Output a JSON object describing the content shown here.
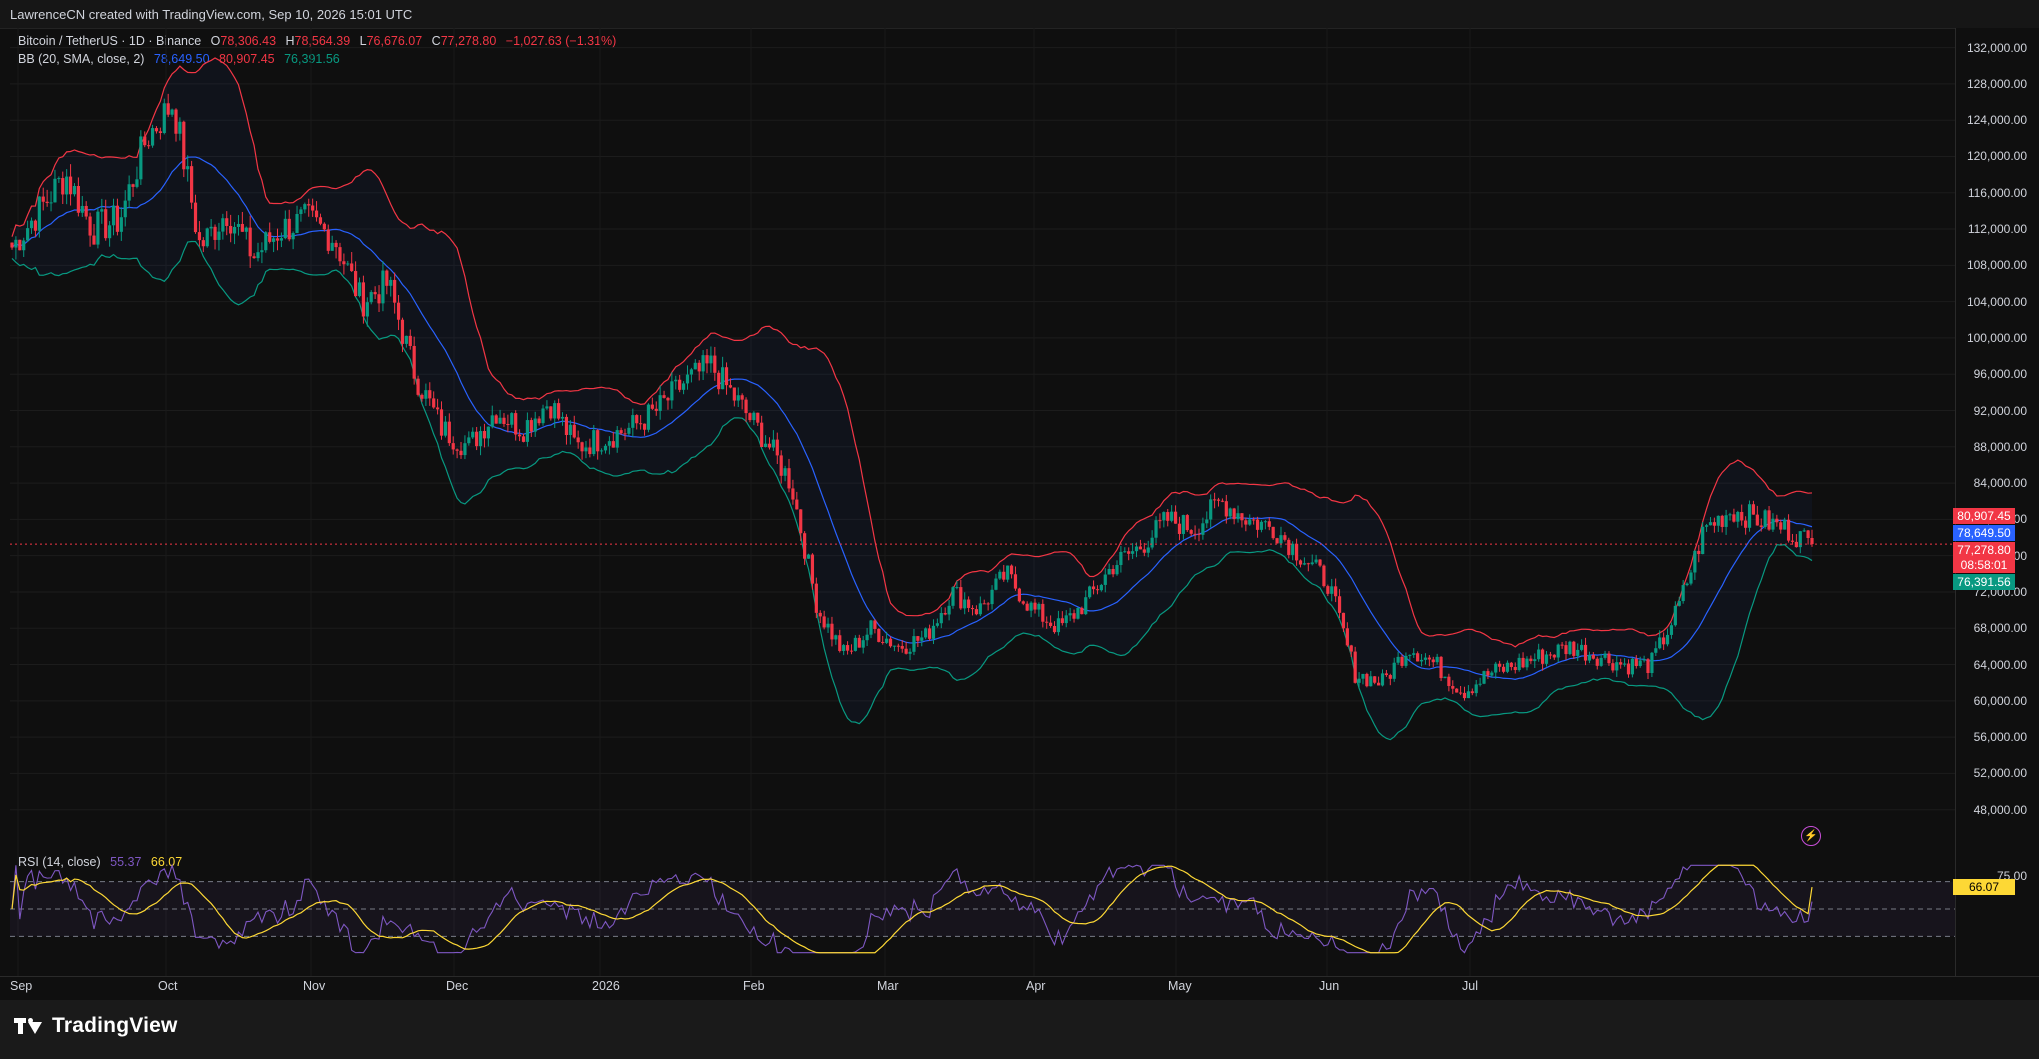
{
  "header": {
    "credit": "LawrenceCN created with TradingView.com, Sep 10, 2026 15:01 UTC"
  },
  "legend": {
    "symbol": "Bitcoin / TetherUS · 1D · Binance",
    "o_label": "O",
    "o_value": "78,306.43",
    "h_label": "H",
    "h_value": "78,564.39",
    "l_label": "L",
    "l_value": "76,676.07",
    "c_label": "C",
    "c_value": "77,278.80",
    "change": "−1,027.63 (−1.31%)",
    "bb_label": "BB (20, SMA, close, 2)",
    "bb_basis": "78,649.50",
    "bb_upper": "80,907.45",
    "bb_lower": "76,391.56",
    "rsi_label": "RSI (14, close)",
    "rsi_value": "55.37",
    "rsi_ma_value": "66.07"
  },
  "price_axis": {
    "ticks": [
      "132,000.00",
      "128,000.00",
      "124,000.00",
      "120,000.00",
      "116,000.00",
      "112,000.00",
      "108,000.00",
      "104,000.00",
      "100,000.00",
      "96,000.00",
      "92,000.00",
      "88,000.00",
      "84,000.00",
      "80,000.00",
      "76,000.00",
      "72,000.00",
      "68,000.00",
      "64,000.00",
      "60,000.00",
      "56,000.00",
      "52,000.00",
      "48,000.00"
    ],
    "tags": {
      "upper": "80,907.45",
      "basis": "78,649.50",
      "close": "77,278.80",
      "countdown": "08:58:01",
      "lower": "76,391.56"
    }
  },
  "rsi_axis": {
    "level_75": "75.00",
    "tag": "66.07"
  },
  "time_axis": {
    "labels": [
      "Sep",
      "Oct",
      "Nov",
      "Dec",
      "2026",
      "Feb",
      "Mar",
      "Apr",
      "May",
      "Jun",
      "Jul"
    ]
  },
  "brand": {
    "name": "TradingView"
  },
  "colors": {
    "up": "#089981",
    "down": "#f23645",
    "bb_upper": "#f23645",
    "bb_basis": "#2962ff",
    "bb_lower": "#089981",
    "rsi_line": "#7e57c2",
    "rsi_ma": "#fdd835",
    "background": "#0f0f0f"
  },
  "chart_data": {
    "type": "candlestick",
    "symbol": "Bitcoin / TetherUS",
    "interval": "1D",
    "ylim": [
      44000,
      133500
    ],
    "x": [
      "Sep",
      "Oct",
      "Nov",
      "Dec",
      "2026",
      "Feb",
      "Mar",
      "Apr",
      "May",
      "Jun",
      "Jul"
    ],
    "anchors": [
      [
        "Sep",
        110000
      ],
      [
        "Sep",
        114000
      ],
      [
        "Sep",
        118000
      ],
      [
        "Sep",
        112000
      ],
      [
        "Oct",
        113000
      ],
      [
        "Oct",
        122000
      ],
      [
        "Oct",
        126000
      ],
      [
        "Oct",
        110000
      ],
      [
        "Oct",
        114000
      ],
      [
        "Oct",
        109000
      ],
      [
        "Oct",
        112000
      ],
      [
        "Oct",
        113000
      ],
      [
        "Nov",
        111000
      ],
      [
        "Nov",
        104000
      ],
      [
        "Nov",
        106000
      ],
      [
        "Nov",
        96000
      ],
      [
        "Nov",
        90000
      ],
      [
        "Nov",
        88000
      ],
      [
        "Nov",
        92000
      ],
      [
        "Dec",
        90000
      ],
      [
        "Dec",
        93000
      ],
      [
        "Dec",
        88000
      ],
      [
        "Dec",
        89000
      ],
      [
        "Dec",
        90000
      ],
      [
        "2026",
        92000
      ],
      [
        "2026",
        95000
      ],
      [
        "2026",
        97000
      ],
      [
        "2026",
        93000
      ],
      [
        "2026",
        89000
      ],
      [
        "Feb",
        84000
      ],
      [
        "Feb",
        70000
      ],
      [
        "Feb",
        65000
      ],
      [
        "Feb",
        68000
      ],
      [
        "Feb",
        66000
      ],
      [
        "Mar",
        67000
      ],
      [
        "Mar",
        72000
      ],
      [
        "Mar",
        70000
      ],
      [
        "Mar",
        74000
      ],
      [
        "Mar",
        70000
      ],
      [
        "Apr",
        68000
      ],
      [
        "Apr",
        71000
      ],
      [
        "Apr",
        75000
      ],
      [
        "Apr",
        77000
      ],
      [
        "Apr",
        80000
      ],
      [
        "May",
        79000
      ],
      [
        "May",
        82000
      ],
      [
        "May",
        80000
      ],
      [
        "May",
        79000
      ],
      [
        "May",
        76000
      ],
      [
        "Jun",
        73000
      ],
      [
        "Jun",
        63000
      ],
      [
        "Jun",
        62000
      ],
      [
        "Jun",
        66000
      ],
      [
        "Jun",
        64000
      ],
      [
        "Jul",
        61000
      ],
      [
        "Jul",
        63000
      ],
      [
        "Jul",
        64000
      ],
      [
        "Jul",
        65000
      ],
      [
        "Jul",
        66000
      ],
      [
        "Jul",
        65000
      ],
      [
        "Jul",
        64000
      ],
      [
        "Jul",
        64000
      ],
      [
        "Jul",
        70000
      ],
      [
        "Jul",
        79000
      ],
      [
        "Jul",
        81000
      ],
      [
        "Jul",
        80000
      ],
      [
        "Jul",
        79000
      ],
      [
        "Jul",
        77278.8
      ]
    ],
    "bollinger": {
      "period": 20,
      "mult": 2,
      "upper": 80907.45,
      "basis": 78649.5,
      "lower": 76391.56
    },
    "rsi": {
      "period": 14,
      "value": 55.37,
      "ma": 66.07,
      "levels": [
        30,
        50,
        70
      ]
    }
  }
}
